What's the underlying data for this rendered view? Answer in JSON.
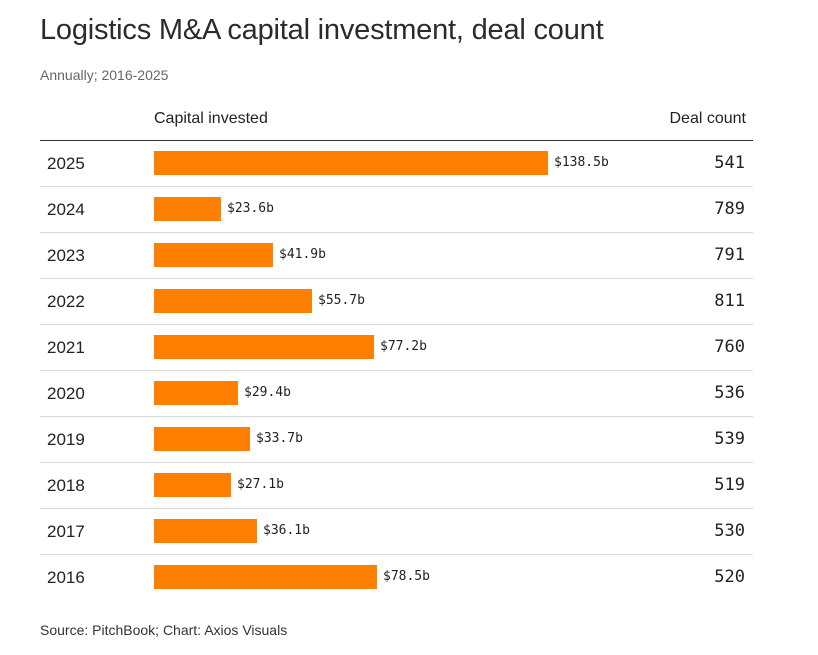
{
  "title": "Logistics M&A capital investment, deal count",
  "subtitle": "Annually; 2016-2025",
  "source": "Source: PitchBook; Chart: Axios Visuals",
  "colors": {
    "bar": "#ff7f00"
  },
  "chart_data": {
    "type": "bar",
    "orientation": "horizontal",
    "columns": [
      "Capital invested",
      "Deal count"
    ],
    "categories": [
      "2025",
      "2024",
      "2023",
      "2022",
      "2021",
      "2020",
      "2019",
      "2018",
      "2017",
      "2016"
    ],
    "series": [
      {
        "name": "Capital invested",
        "values": [
          138.5,
          23.6,
          41.9,
          55.7,
          77.2,
          29.4,
          33.7,
          27.1,
          36.1,
          78.5
        ],
        "labels": [
          "$138.5b",
          "$23.6b",
          "$41.9b",
          "$55.7b",
          "$77.2b",
          "$29.4b",
          "$33.7b",
          "$27.1b",
          "$36.1b",
          "$78.5b"
        ]
      },
      {
        "name": "Deal count",
        "values": [
          541,
          789,
          791,
          811,
          760,
          536,
          539,
          519,
          530,
          520
        ],
        "labels": [
          "541",
          "789",
          "791",
          "811",
          "760",
          "536",
          "539",
          "519",
          "530",
          "520"
        ]
      }
    ],
    "xlim": [
      0,
      138.5
    ],
    "grid": false,
    "legend": "none"
  }
}
